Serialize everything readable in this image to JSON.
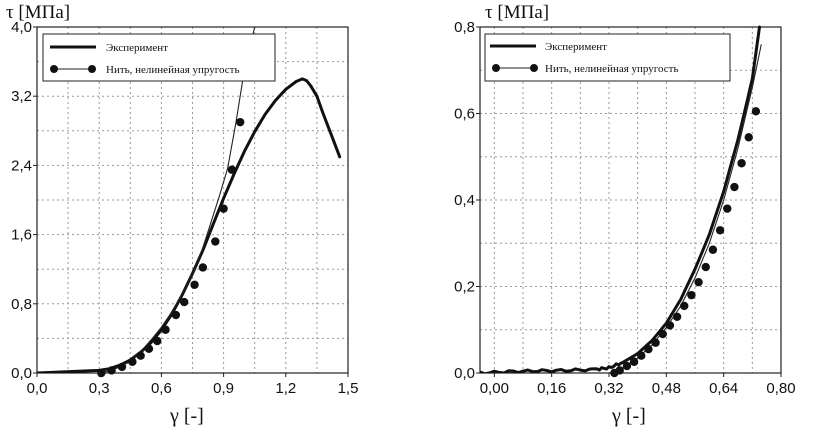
{
  "charts": [
    {
      "ylabel": "τ [МПа]",
      "xlabel": "γ [-]",
      "legend": [
        "Эксперимент",
        "Нить, нелинейная упругость"
      ]
    },
    {
      "ylabel": "τ [МПа]",
      "xlabel": "γ [-]",
      "legend": [
        "Эксперимент",
        "Нить, нелинейная упругость"
      ]
    }
  ],
  "chart_data": [
    {
      "type": "line",
      "title": "",
      "xlabel": "γ [-]",
      "ylabel": "τ [МПа]",
      "xlim": [
        0.0,
        1.5
      ],
      "ylim": [
        0.0,
        4.0
      ],
      "xticks": [
        0.0,
        0.3,
        0.6,
        0.9,
        1.2,
        1.5
      ],
      "xtick_labels": [
        "0,0",
        "0,3",
        "0,6",
        "0,9",
        "1,2",
        "1,5"
      ],
      "yticks": [
        0.0,
        0.8,
        1.6,
        2.4,
        3.2,
        4.0
      ],
      "ytick_labels": [
        "0,0",
        "0,8",
        "1,6",
        "2,4",
        "3,2",
        "4,0"
      ],
      "grid": true,
      "legend_position": "top-left",
      "series": [
        {
          "name": "Эксперимент",
          "style": "thick-line",
          "x": [
            0.0,
            0.1,
            0.2,
            0.3,
            0.35,
            0.4,
            0.45,
            0.5,
            0.55,
            0.6,
            0.65,
            0.7,
            0.75,
            0.8,
            0.85,
            0.9,
            0.95,
            1.0,
            1.05,
            1.1,
            1.15,
            1.2,
            1.25,
            1.28,
            1.3,
            1.32,
            1.35,
            1.38,
            1.42,
            1.46
          ],
          "y": [
            0.0,
            0.01,
            0.02,
            0.03,
            0.05,
            0.09,
            0.15,
            0.24,
            0.35,
            0.5,
            0.68,
            0.9,
            1.15,
            1.42,
            1.72,
            2.02,
            2.3,
            2.56,
            2.79,
            2.99,
            3.15,
            3.28,
            3.37,
            3.4,
            3.38,
            3.32,
            3.2,
            3.0,
            2.75,
            2.5
          ]
        },
        {
          "name": "Нить, нелинейная упругость",
          "style": "thin-line-with-markers",
          "x": [
            0.3,
            0.34,
            0.39,
            0.44,
            0.48,
            0.52,
            0.56,
            0.6,
            0.64,
            0.68,
            0.72,
            0.76,
            0.8,
            0.84,
            0.88,
            0.92,
            0.96,
            1.0,
            1.05
          ],
          "y": [
            0.0,
            0.02,
            0.06,
            0.12,
            0.2,
            0.3,
            0.41,
            0.53,
            0.67,
            0.83,
            1.0,
            1.2,
            1.45,
            1.75,
            2.05,
            2.37,
            2.9,
            3.5,
            4.0
          ],
          "marker_x": [
            0.31,
            0.36,
            0.41,
            0.46,
            0.5,
            0.54,
            0.58,
            0.62,
            0.67,
            0.71,
            0.76,
            0.8,
            0.86,
            0.9,
            0.94,
            0.98
          ],
          "marker_y": [
            0.0,
            0.03,
            0.07,
            0.13,
            0.2,
            0.28,
            0.37,
            0.5,
            0.67,
            0.82,
            1.02,
            1.22,
            1.52,
            1.9,
            2.35,
            2.9
          ]
        }
      ]
    },
    {
      "type": "line",
      "title": "",
      "xlabel": "γ [-]",
      "ylabel": "τ [МПа]",
      "xlim": [
        -0.04,
        0.8
      ],
      "ylim": [
        0.0,
        0.8
      ],
      "xticks": [
        0.0,
        0.16,
        0.32,
        0.48,
        0.64,
        0.8
      ],
      "xtick_labels": [
        "0,00",
        "0,16",
        "0,32",
        "0,48",
        "0,64",
        "0,80"
      ],
      "yticks": [
        0.0,
        0.2,
        0.4,
        0.6,
        0.8
      ],
      "ytick_labels": [
        "0,0",
        "0,2",
        "0,4",
        "0,6",
        "0,8"
      ],
      "grid": true,
      "legend_position": "top-left",
      "series": [
        {
          "name": "Эксперимент",
          "style": "thick-line",
          "x": [
            -0.04,
            0.04,
            0.12,
            0.2,
            0.28,
            0.32,
            0.36,
            0.4,
            0.44,
            0.48,
            0.52,
            0.56,
            0.6,
            0.64,
            0.68,
            0.72,
            0.74
          ],
          "y": [
            0.0,
            0.003,
            0.005,
            0.006,
            0.008,
            0.012,
            0.025,
            0.045,
            0.075,
            0.115,
            0.17,
            0.24,
            0.32,
            0.42,
            0.54,
            0.68,
            0.8
          ],
          "ripple": true
        },
        {
          "name": "Нить, нелинейная упругость",
          "style": "thin-line-with-markers",
          "x": [
            0.33,
            0.36,
            0.4,
            0.44,
            0.48,
            0.52,
            0.56,
            0.6,
            0.64,
            0.68,
            0.72,
            0.745
          ],
          "y": [
            0.0,
            0.012,
            0.035,
            0.065,
            0.105,
            0.155,
            0.22,
            0.3,
            0.4,
            0.52,
            0.66,
            0.76
          ],
          "marker_x": [
            0.335,
            0.35,
            0.37,
            0.39,
            0.41,
            0.43,
            0.45,
            0.47,
            0.49,
            0.51,
            0.53,
            0.55,
            0.57,
            0.59,
            0.61,
            0.63,
            0.65,
            0.67,
            0.69,
            0.71,
            0.73
          ],
          "marker_y": [
            0.0,
            0.006,
            0.016,
            0.026,
            0.04,
            0.055,
            0.07,
            0.09,
            0.11,
            0.13,
            0.155,
            0.18,
            0.21,
            0.245,
            0.285,
            0.33,
            0.38,
            0.43,
            0.485,
            0.545,
            0.605
          ]
        }
      ]
    }
  ]
}
